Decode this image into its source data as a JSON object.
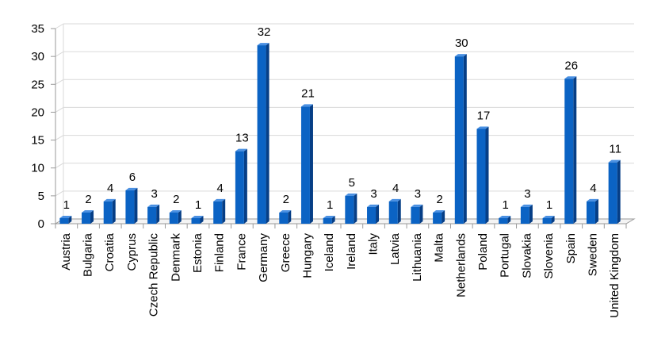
{
  "chart_data": {
    "type": "bar",
    "categories": [
      "Austria",
      "Bulgaria",
      "Croatia",
      "Cyprus",
      "Czech Republic",
      "Denmark",
      "Estonia",
      "Finland",
      "France",
      "Germany",
      "Greece",
      "Hungary",
      "Iceland",
      "Ireland",
      "Italy",
      "Latvia",
      "Lithuania",
      "Malta",
      "Netherlands",
      "Poland",
      "Portugal",
      "Slovakia",
      "Slovenia",
      "Spain",
      "Sweden",
      "United Kingdom"
    ],
    "values": [
      1,
      2,
      4,
      6,
      3,
      2,
      1,
      4,
      13,
      32,
      2,
      21,
      1,
      5,
      3,
      4,
      3,
      2,
      30,
      17,
      1,
      3,
      1,
      26,
      4,
      11
    ],
    "ylim": [
      0,
      35
    ],
    "yticks": [
      0,
      5,
      10,
      15,
      20,
      25,
      30,
      35
    ],
    "grid": true,
    "data_labels": true,
    "colors": {
      "bar_front": "#0b63c4",
      "bar_side": "#063e86",
      "bar_top": "#4a90e2",
      "grid": "#d9d9d9",
      "axis": "#9a9a9a"
    }
  }
}
